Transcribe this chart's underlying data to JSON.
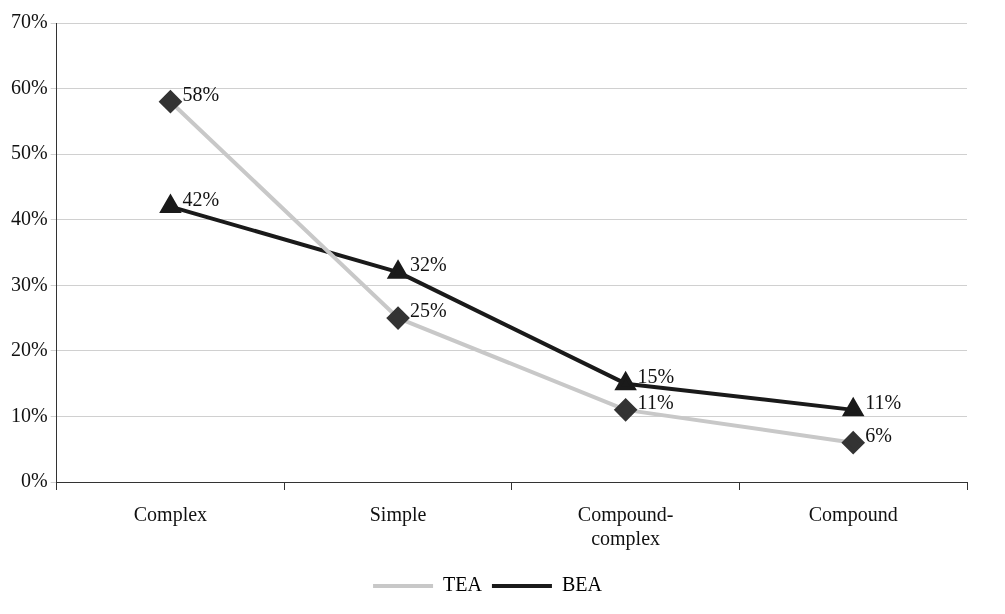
{
  "chart_data": {
    "type": "line",
    "categories": [
      "Complex",
      "Simple",
      "Compound-complex",
      "Compound"
    ],
    "series": [
      {
        "name": "TEA",
        "color": "#c8c8c8",
        "marker": "diamond",
        "values": [
          58,
          25,
          11,
          6
        ],
        "value_labels": [
          "58%",
          "25%",
          "11%",
          "6%"
        ]
      },
      {
        "name": "BEA",
        "color": "#1a1a1a",
        "marker": "triangle",
        "values": [
          42,
          32,
          15,
          11
        ],
        "value_labels": [
          "42%",
          "32%",
          "15%",
          "11%"
        ]
      }
    ],
    "ylim": [
      0,
      70
    ],
    "yticks": [
      {
        "value": 0,
        "label": "0%"
      },
      {
        "value": 10,
        "label": "10%"
      },
      {
        "value": 20,
        "label": "20%"
      },
      {
        "value": 30,
        "label": "30%"
      },
      {
        "value": 40,
        "label": "40%"
      },
      {
        "value": 50,
        "label": "50%"
      },
      {
        "value": 60,
        "label": "60%"
      },
      {
        "value": 70,
        "label": "70%"
      }
    ],
    "grid": "y",
    "legend": "bottom"
  }
}
